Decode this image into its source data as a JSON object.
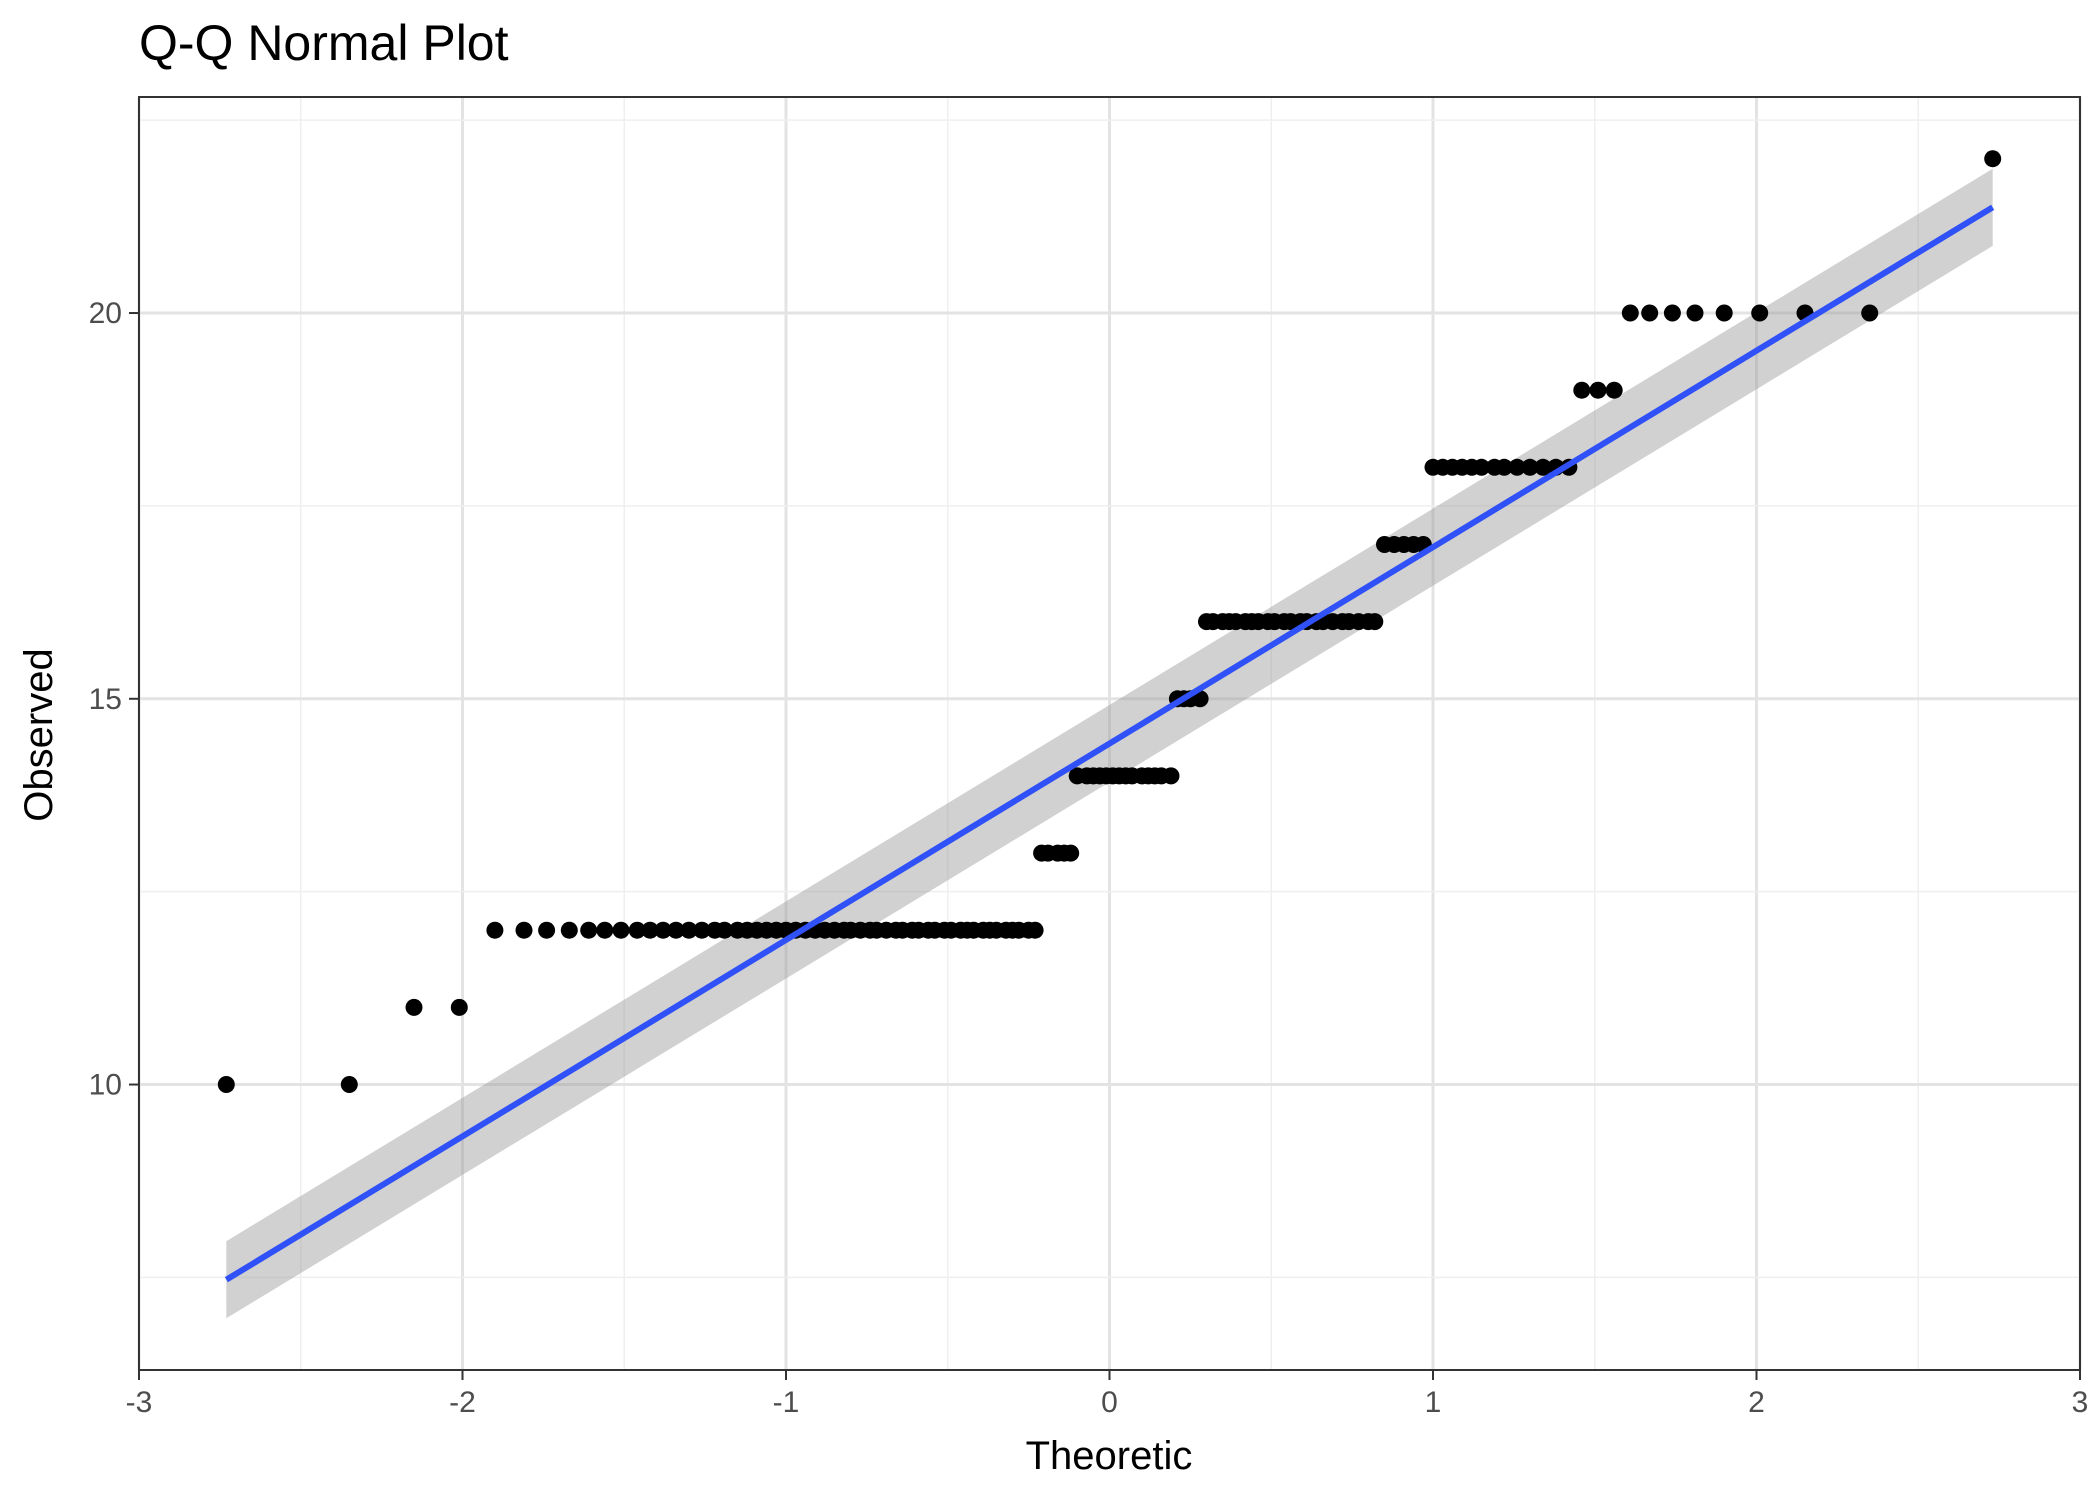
{
  "chart_data": {
    "type": "scatter",
    "title": "Q-Q Normal Plot",
    "xlabel": "Theoretic",
    "ylabel": "Observed",
    "xlim": [
      -3,
      3
    ],
    "ylim": [
      6.3,
      22.8
    ],
    "x_ticks": [
      -3,
      -2,
      -1,
      0,
      1,
      2,
      3
    ],
    "x_tick_labels": [
      "-3",
      "-2",
      "-1",
      "0",
      "1",
      "2",
      "3"
    ],
    "y_ticks": [
      10,
      15,
      20
    ],
    "y_tick_labels": [
      "10",
      "15",
      "20"
    ],
    "grid": true,
    "points_x": [
      -2.73,
      -2.35,
      -2.15,
      -2.01,
      -1.9,
      -1.81,
      -1.74,
      -1.67,
      -1.61,
      -1.56,
      -1.51,
      -1.46,
      -1.42,
      -1.38,
      -1.34,
      -1.3,
      -1.26,
      -1.22,
      -1.19,
      -1.15,
      -1.12,
      -1.09,
      -1.06,
      -1.03,
      -1.0,
      -0.97,
      -0.94,
      -0.91,
      -0.88,
      -0.85,
      -0.82,
      -0.8,
      -0.77,
      -0.74,
      -0.72,
      -0.69,
      -0.66,
      -0.64,
      -0.61,
      -0.59,
      -0.56,
      -0.54,
      -0.51,
      -0.49,
      -0.46,
      -0.44,
      -0.42,
      -0.39,
      -0.37,
      -0.35,
      -0.32,
      -0.3,
      -0.28,
      -0.25,
      -0.23,
      -0.21,
      -0.19,
      -0.16,
      -0.14,
      -0.12,
      -0.1,
      -0.07,
      -0.05,
      -0.03,
      -0.01,
      0.01,
      0.03,
      0.05,
      0.07,
      0.1,
      0.12,
      0.14,
      0.16,
      0.19,
      0.21,
      0.23,
      0.25,
      0.28,
      0.3,
      0.32,
      0.35,
      0.37,
      0.39,
      0.42,
      0.44,
      0.46,
      0.49,
      0.51,
      0.54,
      0.56,
      0.59,
      0.61,
      0.64,
      0.66,
      0.69,
      0.72,
      0.74,
      0.77,
      0.8,
      0.82,
      0.85,
      0.88,
      0.91,
      0.94,
      0.97,
      1.0,
      1.03,
      1.06,
      1.09,
      1.12,
      1.15,
      1.19,
      1.22,
      1.26,
      1.3,
      1.34,
      1.38,
      1.42,
      1.46,
      1.51,
      1.56,
      1.61,
      1.67,
      1.74,
      1.81,
      1.9,
      2.01,
      2.15,
      2.35,
      2.73
    ],
    "points_y": [
      10,
      10,
      11,
      11,
      12,
      12,
      12,
      12,
      12,
      12,
      12,
      12,
      12,
      12,
      12,
      12,
      12,
      12,
      12,
      12,
      12,
      12,
      12,
      12,
      12,
      12,
      12,
      12,
      12,
      12,
      12,
      12,
      12,
      12,
      12,
      12,
      12,
      12,
      12,
      12,
      12,
      12,
      12,
      12,
      12,
      12,
      12,
      12,
      12,
      12,
      12,
      12,
      12,
      12,
      12,
      13,
      13,
      13,
      13,
      13,
      14,
      14,
      14,
      14,
      14,
      14,
      14,
      14,
      14,
      14,
      14,
      14,
      14,
      14,
      15,
      15,
      15,
      15,
      16,
      16,
      16,
      16,
      16,
      16,
      16,
      16,
      16,
      16,
      16,
      16,
      16,
      16,
      16,
      16,
      16,
      16,
      16,
      16,
      16,
      16,
      17,
      17,
      17,
      17,
      17,
      18,
      18,
      18,
      18,
      18,
      18,
      18,
      18,
      18,
      18,
      18,
      18,
      18,
      19,
      19,
      19,
      20,
      20,
      20,
      20,
      20,
      20,
      20,
      20,
      22,
      22
    ],
    "fit_line": {
      "x": [
        -2.73,
        2.73
      ],
      "y": [
        7.47,
        21.37
      ],
      "band_lower": [
        6.97,
        20.87
      ],
      "band_upper": [
        7.97,
        21.87
      ],
      "color": "#3050f8",
      "band_color": "#999999"
    }
  }
}
